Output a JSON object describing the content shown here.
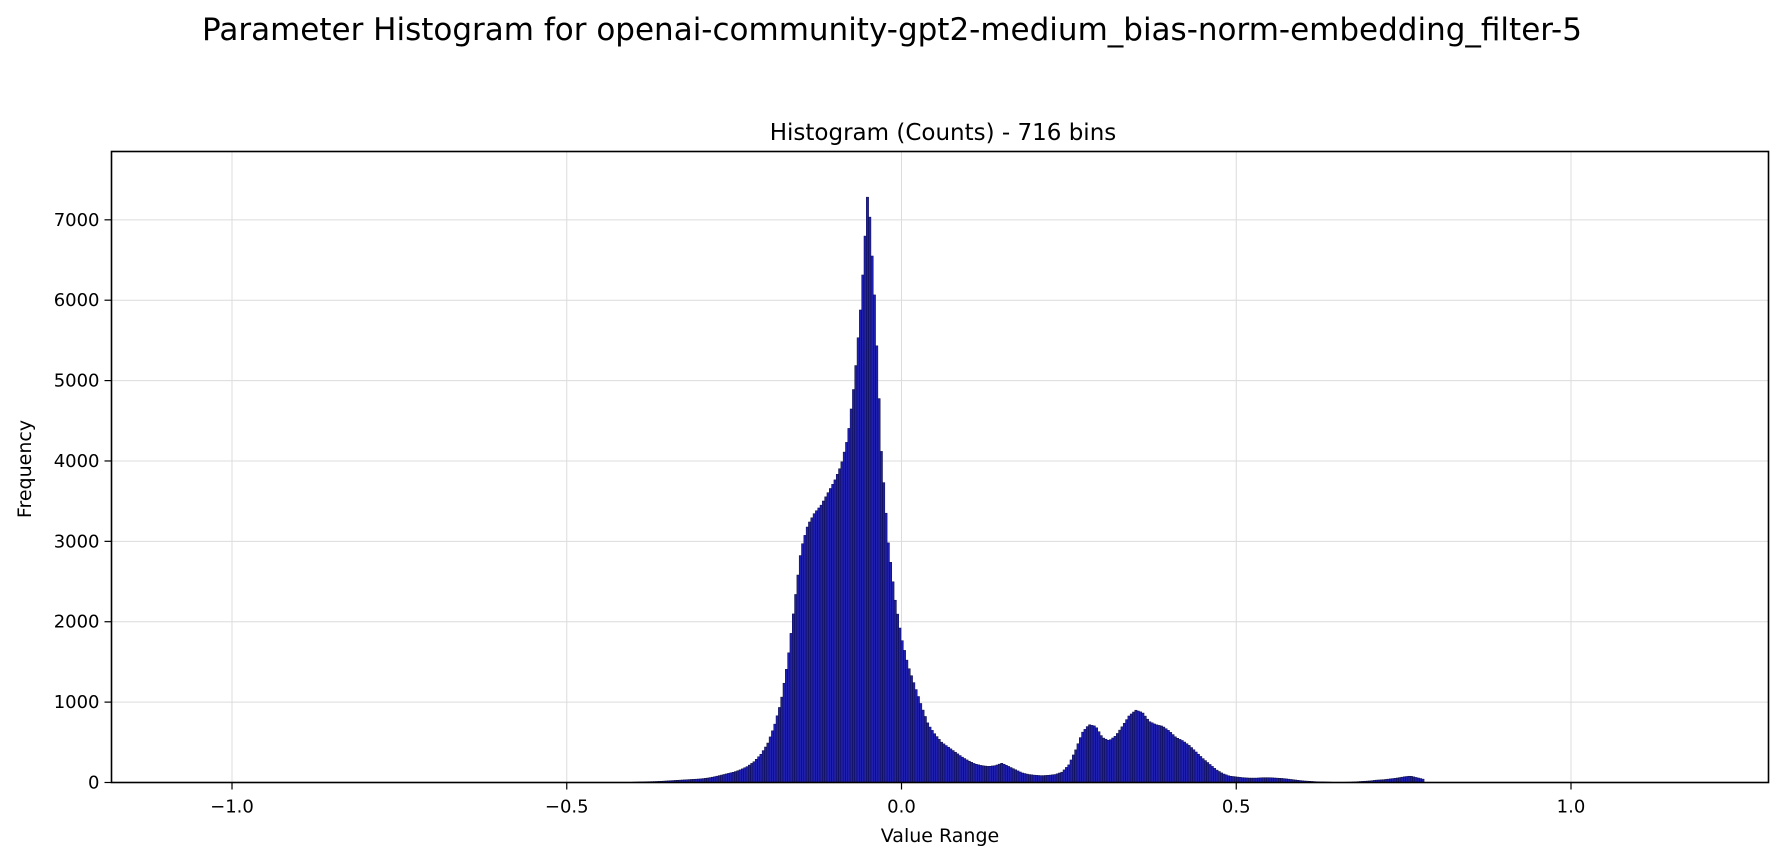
{
  "suptitle": "Parameter Histogram for openai-community-gpt2-medium_bias-norm-embedding_filter-5",
  "chart_data": {
    "type": "bar",
    "title": "Histogram (Counts) - 716 bins",
    "xlabel": "Value Range",
    "ylabel": "Frequency",
    "bins": 716,
    "xlim": [
      -1.18,
      1.295
    ],
    "ylim": [
      0,
      7850
    ],
    "x_ticks": [
      -1.0,
      -0.5,
      0.0,
      0.5,
      1.0
    ],
    "x_tick_labels": [
      "−1.0",
      "−0.5",
      "0.0",
      "0.5",
      "1.0"
    ],
    "y_ticks": [
      0,
      1000,
      2000,
      3000,
      4000,
      5000,
      6000,
      7000
    ],
    "y_tick_labels": [
      "0",
      "1000",
      "2000",
      "3000",
      "4000",
      "5000",
      "6000",
      "7000"
    ],
    "grid": true,
    "bar_color": "#2020b0",
    "edge_color": "#0a0a3a",
    "bin_width": 0.003457,
    "x": [
      -0.4,
      -0.39,
      -0.38,
      -0.37,
      -0.36,
      -0.35,
      -0.34,
      -0.33,
      -0.32,
      -0.31,
      -0.3,
      -0.29,
      -0.28,
      -0.27,
      -0.26,
      -0.25,
      -0.24,
      -0.23,
      -0.22,
      -0.21,
      -0.2,
      -0.19,
      -0.18,
      -0.17,
      -0.16,
      -0.15,
      -0.14,
      -0.13,
      -0.12,
      -0.11,
      -0.1,
      -0.09,
      -0.08,
      -0.07,
      -0.06,
      -0.05,
      -0.04,
      -0.03,
      -0.02,
      -0.01,
      0.0,
      0.01,
      0.02,
      0.03,
      0.04,
      0.05,
      0.06,
      0.07,
      0.08,
      0.09,
      0.1,
      0.11,
      0.12,
      0.13,
      0.14,
      0.15,
      0.16,
      0.17,
      0.18,
      0.19,
      0.2,
      0.21,
      0.22,
      0.23,
      0.24,
      0.25,
      0.26,
      0.27,
      0.28,
      0.29,
      0.3,
      0.31,
      0.32,
      0.33,
      0.34,
      0.35,
      0.36,
      0.37,
      0.38,
      0.39,
      0.4,
      0.41,
      0.42,
      0.43,
      0.44,
      0.45,
      0.46,
      0.47,
      0.48,
      0.49,
      0.5,
      0.51,
      0.52,
      0.53,
      0.54,
      0.55,
      0.56,
      0.57,
      0.58,
      0.59,
      0.6,
      0.61,
      0.62,
      0.63,
      0.64,
      0.65,
      0.66,
      0.67,
      0.68,
      0.69,
      0.7,
      0.71,
      0.72,
      0.73,
      0.74,
      0.75,
      0.76,
      0.77,
      0.78
    ],
    "values": [
      5,
      8,
      10,
      12,
      15,
      20,
      25,
      30,
      35,
      40,
      45,
      55,
      70,
      90,
      110,
      130,
      160,
      200,
      260,
      350,
      480,
      700,
      1000,
      1500,
      2200,
      2900,
      3200,
      3350,
      3450,
      3600,
      3750,
      3950,
      4300,
      5000,
      6000,
      7400,
      6000,
      4100,
      3000,
      2300,
      1800,
      1450,
      1200,
      950,
      720,
      600,
      500,
      440,
      380,
      320,
      270,
      230,
      210,
      200,
      210,
      240,
      200,
      160,
      120,
      100,
      90,
      85,
      90,
      100,
      130,
      220,
      400,
      620,
      720,
      700,
      560,
      520,
      580,
      700,
      830,
      900,
      870,
      760,
      720,
      700,
      640,
      560,
      520,
      460,
      380,
      300,
      230,
      160,
      110,
      80,
      70,
      60,
      55,
      55,
      60,
      60,
      55,
      50,
      40,
      30,
      20,
      15,
      10,
      8,
      5,
      0,
      3,
      5,
      10,
      15,
      20,
      30,
      35,
      45,
      55,
      70,
      80,
      60,
      40
    ]
  }
}
